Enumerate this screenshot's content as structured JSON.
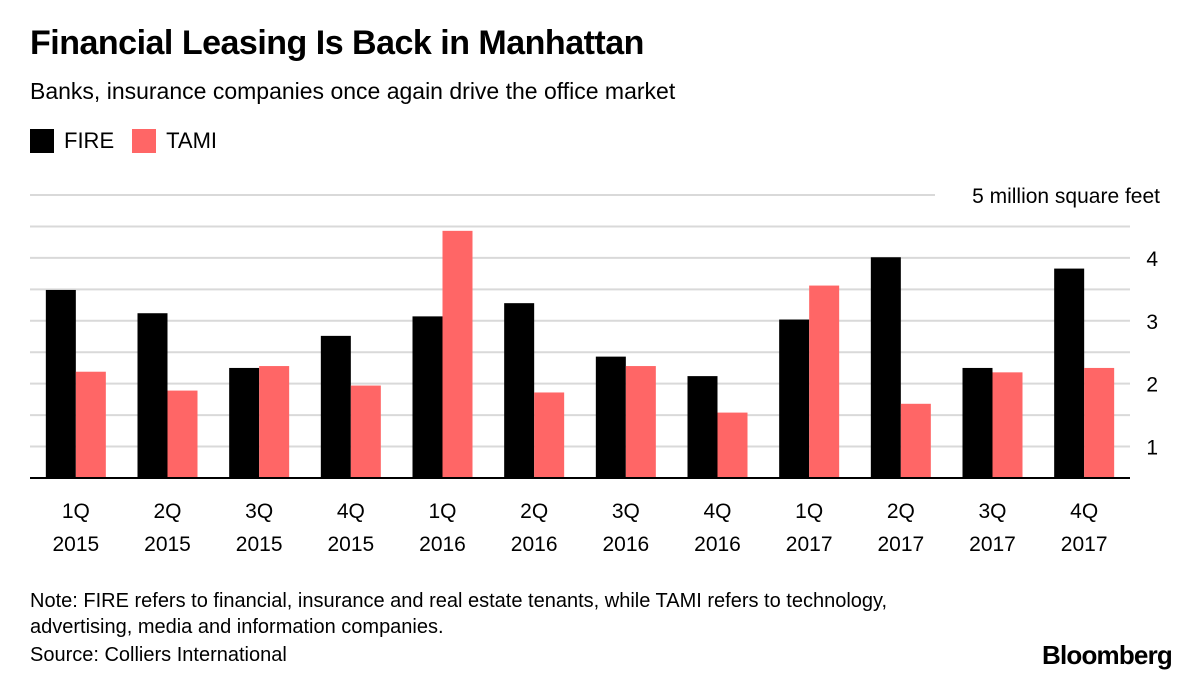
{
  "title": "Financial Leasing Is Back in Manhattan",
  "subtitle": "Banks, insurance companies once again drive the office market",
  "legend": {
    "fire_label": "FIRE",
    "tami_label": "TAMI"
  },
  "colors": {
    "fire": "#000000",
    "tami": "#ff6666",
    "grid": "#d9d9d9",
    "axis": "#000000"
  },
  "chart_data": {
    "type": "bar",
    "title": "Financial Leasing Is Back in Manhattan",
    "subtitle": "Banks, insurance companies once again drive the office market",
    "categories": [
      "1Q 2015",
      "2Q 2015",
      "3Q 2015",
      "4Q 2015",
      "1Q 2016",
      "2Q 2016",
      "3Q 2016",
      "4Q 2016",
      "1Q 2017",
      "2Q 2017",
      "3Q 2017",
      "4Q 2017"
    ],
    "category_lines": [
      [
        "1Q",
        "2015"
      ],
      [
        "2Q",
        "2015"
      ],
      [
        "3Q",
        "2015"
      ],
      [
        "4Q",
        "2015"
      ],
      [
        "1Q",
        "2016"
      ],
      [
        "2Q",
        "2016"
      ],
      [
        "3Q",
        "2016"
      ],
      [
        "4Q",
        "2016"
      ],
      [
        "1Q",
        "2017"
      ],
      [
        "2Q",
        "2017"
      ],
      [
        "3Q",
        "2017"
      ],
      [
        "4Q",
        "2017"
      ]
    ],
    "series": [
      {
        "name": "FIRE",
        "values": [
          3.49,
          3.12,
          2.25,
          2.76,
          3.07,
          3.28,
          2.43,
          2.12,
          3.02,
          4.01,
          2.25,
          3.83
        ]
      },
      {
        "name": "TAMI",
        "values": [
          2.19,
          1.89,
          2.28,
          1.97,
          4.43,
          1.86,
          2.28,
          1.54,
          3.56,
          1.68,
          2.18,
          2.25
        ]
      }
    ],
    "ylabel": "million square feet",
    "ylim": [
      0.5,
      5
    ],
    "top_label": "5 million square feet",
    "yticks": [
      1,
      2,
      3,
      4
    ],
    "grid_values": [
      1,
      1.5,
      2,
      2.5,
      3,
      3.5,
      4,
      4.5,
      5
    ],
    "grid": true,
    "legend_position": "top-left"
  },
  "footer": {
    "note": "Note: FIRE refers to financial, insurance and real estate tenants, while TAMI refers to technology, advertising, media and information companies.",
    "source": "Source: Colliers International",
    "brand": "Bloomberg"
  }
}
